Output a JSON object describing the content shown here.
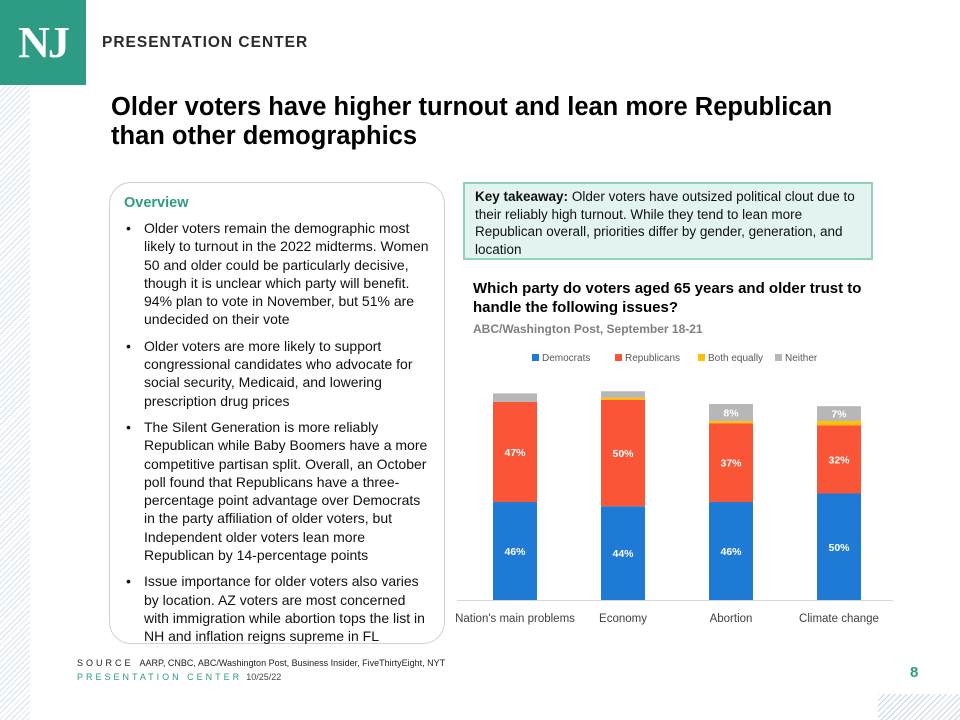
{
  "header": {
    "logo_text": "NJ",
    "brand": "PRESENTATION CENTER"
  },
  "title": "Older voters have higher turnout and lean more Republican than other demographics",
  "overview": {
    "heading": "Overview",
    "bullets": [
      "Older voters remain the demographic most likely to turnout in the 2022 midterms. Women 50 and older could be particularly decisive, though it is unclear which party will benefit. 94% plan to vote in November, but 51% are undecided on their vote",
      "Older voters are more likely to support congressional candidates who advocate for social security, Medicaid, and lowering prescription drug prices",
      "The Silent Generation is more reliably Republican while Baby Boomers have a more competitive partisan split. Overall, an October poll found that Republicans have a three-percentage point advantage over Democrats in the party affiliation of older voters, but Independent older voters lean more Republican by 14-percentage points",
      "Issue importance for older voters also varies by location. AZ voters are most concerned with immigration while abortion tops the list in NH and inflation reigns supreme in FL"
    ]
  },
  "takeaway": {
    "label": "Key takeaway:",
    "text": " Older voters have outsized political clout due to their reliably high turnout. While they tend to lean more Republican overall, priorities differ by gender, generation, and location"
  },
  "chart_title": "Which party do voters aged 65 years and older trust to handle the following issues?",
  "chart_subtitle": "ABC/Washington  Post,  September 18-21",
  "chart_data": {
    "type": "bar",
    "stacked": true,
    "categories": [
      "Nation's main problems",
      "Economy",
      "Abortion",
      "Climate change"
    ],
    "series": [
      {
        "name": "Democrats",
        "color": "#1f7ad6",
        "values": [
          46,
          44,
          46,
          50
        ],
        "labels": [
          "46%",
          "44%",
          "46%",
          "50%"
        ]
      },
      {
        "name": "Republicans",
        "color": "#fa5537",
        "values": [
          47,
          50,
          37,
          32
        ],
        "labels": [
          "47%",
          "50%",
          "37%",
          "32%"
        ]
      },
      {
        "name": "Both equally",
        "color": "#ffc000",
        "values": [
          0,
          1,
          1,
          2
        ],
        "labels": [
          "",
          "",
          "",
          ""
        ]
      },
      {
        "name": "Neither",
        "color": "#b7b7b7",
        "values": [
          4,
          3,
          8,
          7
        ],
        "labels": [
          "",
          "",
          "8%",
          "7%"
        ]
      }
    ],
    "ylim": [
      0,
      100
    ],
    "legend_position": "top",
    "grid": false
  },
  "footer": {
    "source_label": "SOURCE",
    "source_text": "AARP, CNBC, ABC/Washington Post, Business Insider, FiveThirtyEight, NYT",
    "center_label": "PRESENTATION CENTER",
    "date": "10/25/22",
    "page": "8"
  }
}
